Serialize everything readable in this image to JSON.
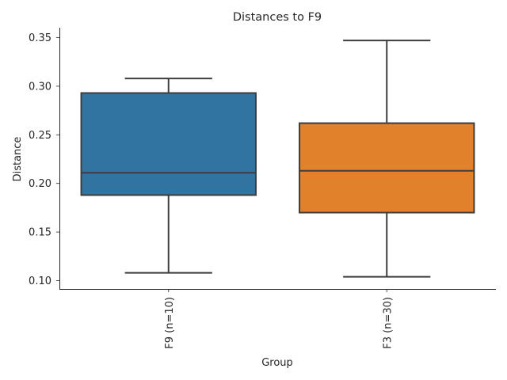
{
  "chart_data": {
    "type": "box",
    "title": "Distances to F9",
    "xlabel": "Group",
    "ylabel": "Distance",
    "ylim": [
      0.09,
      0.36
    ],
    "yticks": [
      "0.10",
      "0.15",
      "0.20",
      "0.25",
      "0.30",
      "0.35"
    ],
    "grid": false,
    "groups": [
      {
        "label": "F9 (n=10)",
        "color": "#3274a1",
        "whisker_low": 0.108,
        "q1": 0.188,
        "median": 0.211,
        "q3": 0.293,
        "whisker_high": 0.308
      },
      {
        "label": "F3 (n=30)",
        "color": "#e1812c",
        "whisker_low": 0.104,
        "q1": 0.17,
        "median": 0.213,
        "q3": 0.262,
        "whisker_high": 0.347
      }
    ]
  }
}
